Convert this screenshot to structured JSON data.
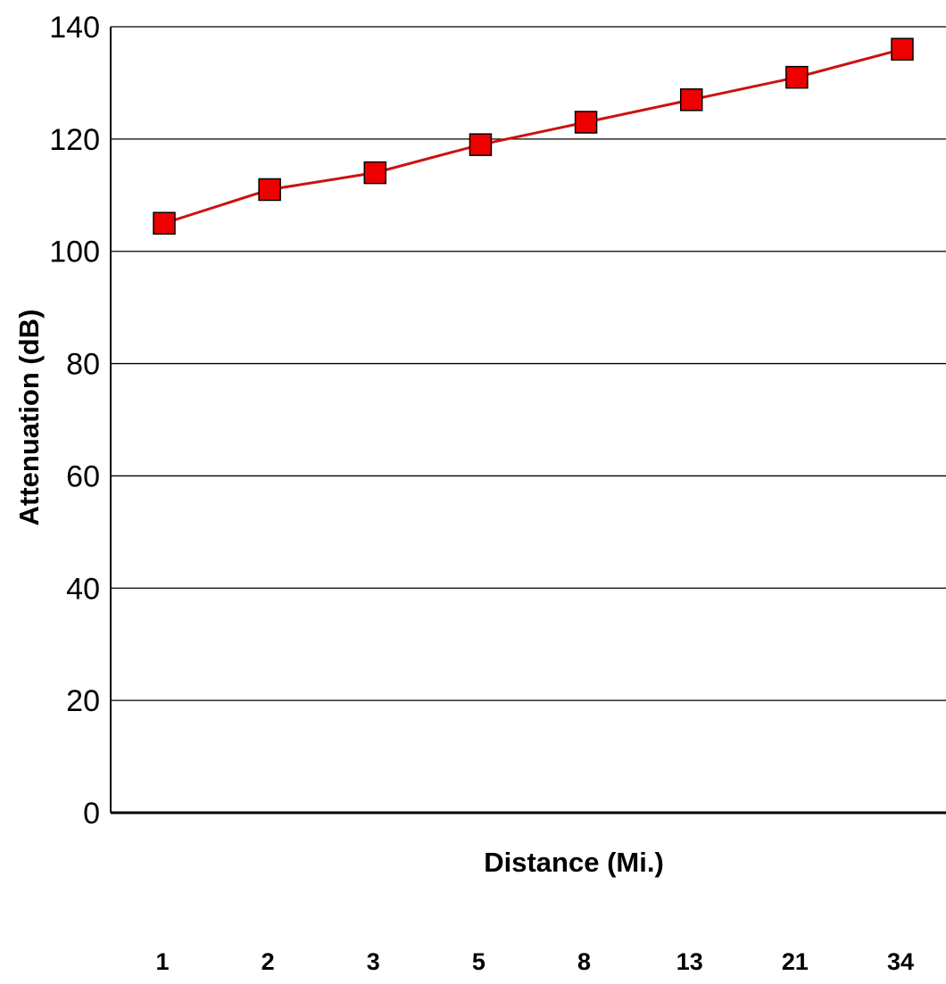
{
  "chart_data": {
    "type": "line",
    "title": "",
    "xlabel": "Distance (Mi.)",
    "ylabel": "Attenuation (dB)",
    "categories": [
      "1",
      "2",
      "3",
      "5",
      "8",
      "13",
      "21",
      "34"
    ],
    "series": [
      {
        "values": [
          105,
          111,
          114,
          119,
          123,
          127,
          131,
          136
        ]
      }
    ],
    "ylim": [
      0,
      140
    ],
    "yticks": [
      0,
      20,
      40,
      60,
      80,
      100,
      120,
      140
    ],
    "grid": true,
    "legend": "none",
    "colors": {
      "line": "#cc1111",
      "marker_fill": "#ee0000",
      "marker_stroke": "#000000",
      "grid": "#000000"
    }
  }
}
